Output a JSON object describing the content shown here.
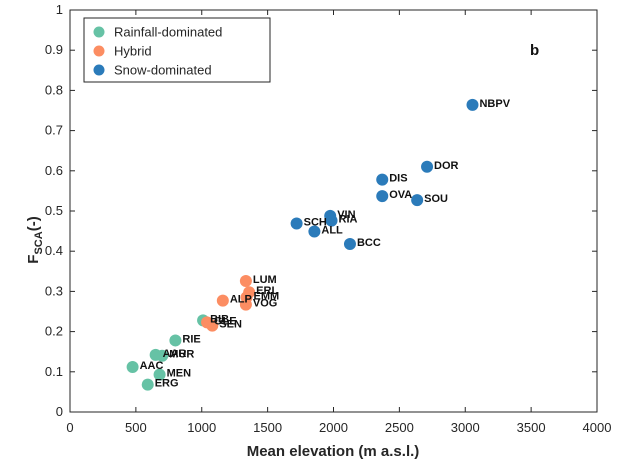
{
  "chart_data": {
    "type": "scatter",
    "panel_label": "b",
    "xlabel": "Mean elevation (m a.s.l.)",
    "ylabel_main": "F",
    "ylabel_sub": "SCA",
    "ylabel_tail": "(-)",
    "xlim": [
      0,
      4000
    ],
    "ylim": [
      0,
      1
    ],
    "x_ticks": [
      0,
      500,
      1000,
      1500,
      2000,
      2500,
      3000,
      3500,
      4000
    ],
    "y_ticks": [
      0,
      0.1,
      0.2,
      0.3,
      0.4,
      0.5,
      0.6,
      0.7,
      0.8,
      0.9,
      1
    ],
    "y_tick_labels": [
      "0",
      "0.1",
      "0.2",
      "0.3",
      "0.4",
      "0.5",
      "0.6",
      "0.7",
      "0.8",
      "0.9",
      "1"
    ],
    "grid": false,
    "legend_position": "top-left",
    "series": [
      {
        "name": "Rainfall-dominated",
        "color": "#66c2a5",
        "points": [
          {
            "label": "AAC",
            "x": 475,
            "y": 0.112
          },
          {
            "label": "ERG",
            "x": 590,
            "y": 0.068
          },
          {
            "label": "MEN",
            "x": 680,
            "y": 0.093
          },
          {
            "label": "AAR",
            "x": 650,
            "y": 0.142
          },
          {
            "label": "MUR",
            "x": 700,
            "y": 0.14
          },
          {
            "label": "RIE",
            "x": 800,
            "y": 0.178
          },
          {
            "label": "BIB",
            "x": 1010,
            "y": 0.228
          }
        ]
      },
      {
        "name": "Hybrid",
        "color": "#fc8d62",
        "points": [
          {
            "label": "GLE",
            "x": 1040,
            "y": 0.223
          },
          {
            "label": "SEN",
            "x": 1080,
            "y": 0.215
          },
          {
            "label": "ALP",
            "x": 1160,
            "y": 0.277
          },
          {
            "label": "LUM",
            "x": 1335,
            "y": 0.326
          },
          {
            "label": "ERL",
            "x": 1360,
            "y": 0.298
          },
          {
            "label": "EMM",
            "x": 1340,
            "y": 0.285
          },
          {
            "label": "VOG",
            "x": 1335,
            "y": 0.267
          }
        ]
      },
      {
        "name": "Snow-dominated",
        "color": "#2b7bba",
        "points": [
          {
            "label": "SCH",
            "x": 1720,
            "y": 0.469
          },
          {
            "label": "ALL",
            "x": 1855,
            "y": 0.449
          },
          {
            "label": "VIN",
            "x": 1975,
            "y": 0.488
          },
          {
            "label": "RIA",
            "x": 1985,
            "y": 0.476
          },
          {
            "label": "BCC",
            "x": 2125,
            "y": 0.418
          },
          {
            "label": "DIS",
            "x": 2370,
            "y": 0.578
          },
          {
            "label": "OVA",
            "x": 2370,
            "y": 0.537
          },
          {
            "label": "SOU",
            "x": 2635,
            "y": 0.527
          },
          {
            "label": "DOR",
            "x": 2710,
            "y": 0.61
          },
          {
            "label": "NBPV",
            "x": 3055,
            "y": 0.764
          }
        ]
      }
    ]
  }
}
